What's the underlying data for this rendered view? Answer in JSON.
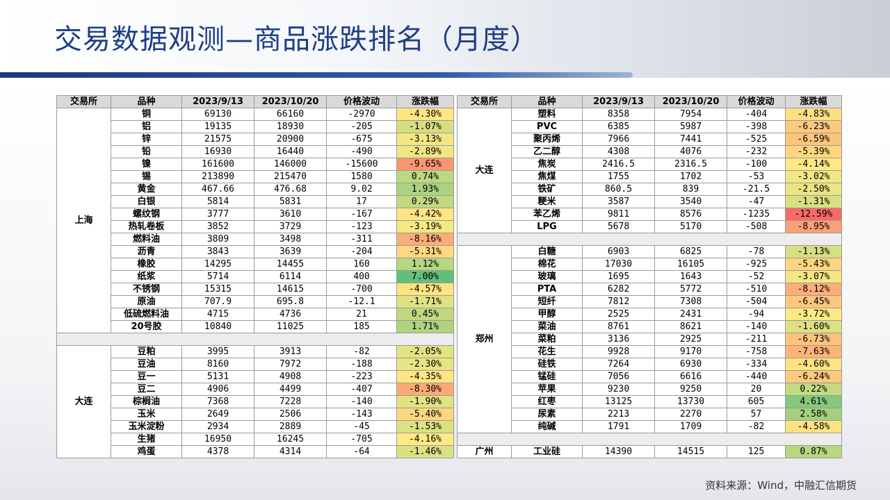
{
  "title": "交易数据观测—商品涨跌排名（月度）",
  "source": "资料来源：Wind，中融汇信期货",
  "headers": [
    "交易所",
    "品种",
    "2023/9/13",
    "2023/10/20",
    "价格波动",
    "涨跌幅"
  ],
  "left_groups": [
    {
      "exchange": "上海",
      "rows": [
        [
          "铜",
          "69130",
          "66160",
          "-2970",
          "-4.30%"
        ],
        [
          "铝",
          "19135",
          "18930",
          "-205",
          "-1.07%"
        ],
        [
          "锌",
          "21575",
          "20900",
          "-675",
          "-3.13%"
        ],
        [
          "铅",
          "16930",
          "16440",
          "-490",
          "-2.89%"
        ],
        [
          "镍",
          "161600",
          "146000",
          "-15600",
          "-9.65%"
        ],
        [
          "锡",
          "213890",
          "215470",
          "1580",
          "0.74%"
        ],
        [
          "黄金",
          "467.66",
          "476.68",
          "9.02",
          "1.93%"
        ],
        [
          "白银",
          "5814",
          "5831",
          "17",
          "0.29%"
        ],
        [
          "螺纹钢",
          "3777",
          "3610",
          "-167",
          "-4.42%"
        ],
        [
          "热轧卷板",
          "3852",
          "3729",
          "-123",
          "-3.19%"
        ],
        [
          "燃料油",
          "3809",
          "3498",
          "-311",
          "-8.16%"
        ],
        [
          "沥青",
          "3843",
          "3639",
          "-204",
          "-5.31%"
        ],
        [
          "橡胶",
          "14295",
          "14455",
          "160",
          "1.12%"
        ],
        [
          "纸浆",
          "5714",
          "6114",
          "400",
          "7.00%"
        ],
        [
          "不锈钢",
          "15315",
          "14615",
          "-700",
          "-4.57%"
        ],
        [
          "原油",
          "707.9",
          "695.8",
          "-12.1",
          "-1.71%"
        ],
        [
          "低硫燃料油",
          "4715",
          "4736",
          "21",
          "0.45%"
        ],
        [
          "20号胶",
          "10840",
          "11025",
          "185",
          "1.71%"
        ]
      ]
    },
    {
      "exchange": "大连",
      "rows": [
        [
          "豆粕",
          "3995",
          "3913",
          "-82",
          "-2.05%"
        ],
        [
          "豆油",
          "8160",
          "7972",
          "-188",
          "-2.30%"
        ],
        [
          "豆一",
          "5131",
          "4908",
          "-223",
          "-4.35%"
        ],
        [
          "豆二",
          "4906",
          "4499",
          "-407",
          "-8.30%"
        ],
        [
          "棕榈油",
          "7368",
          "7228",
          "-140",
          "-1.90%"
        ],
        [
          "玉米",
          "2649",
          "2506",
          "-143",
          "-5.40%"
        ],
        [
          "玉米淀粉",
          "2934",
          "2889",
          "-45",
          "-1.53%"
        ],
        [
          "生猪",
          "16950",
          "16245",
          "-705",
          "-4.16%"
        ],
        [
          "鸡蛋",
          "4378",
          "4314",
          "-64",
          "-1.46%"
        ]
      ]
    }
  ],
  "right_groups": [
    {
      "exchange": "大连",
      "rows": [
        [
          "塑料",
          "8358",
          "7954",
          "-404",
          "-4.83%"
        ],
        [
          "PVC",
          "6385",
          "5987",
          "-398",
          "-6.23%"
        ],
        [
          "聚丙烯",
          "7966",
          "7441",
          "-525",
          "-6.59%"
        ],
        [
          "乙二醇",
          "4308",
          "4076",
          "-232",
          "-5.39%"
        ],
        [
          "焦炭",
          "2416.5",
          "2316.5",
          "-100",
          "-4.14%"
        ],
        [
          "焦煤",
          "1755",
          "1702",
          "-53",
          "-3.02%"
        ],
        [
          "铁矿",
          "860.5",
          "839",
          "-21.5",
          "-2.50%"
        ],
        [
          "粳米",
          "3587",
          "3540",
          "-47",
          "-1.31%"
        ],
        [
          "苯乙烯",
          "9811",
          "8576",
          "-1235",
          "-12.59%"
        ],
        [
          "LPG",
          "5678",
          "5170",
          "-508",
          "-8.95%"
        ]
      ]
    },
    {
      "exchange": "郑州",
      "rows": [
        [
          "白糖",
          "6903",
          "6825",
          "-78",
          "-1.13%"
        ],
        [
          "棉花",
          "17030",
          "16105",
          "-925",
          "-5.43%"
        ],
        [
          "玻璃",
          "1695",
          "1643",
          "-52",
          "-3.07%"
        ],
        [
          "PTA",
          "6282",
          "5772",
          "-510",
          "-8.12%"
        ],
        [
          "短纤",
          "7812",
          "7308",
          "-504",
          "-6.45%"
        ],
        [
          "甲醇",
          "2525",
          "2431",
          "-94",
          "-3.72%"
        ],
        [
          "菜油",
          "8761",
          "8621",
          "-140",
          "-1.60%"
        ],
        [
          "菜粕",
          "3136",
          "2925",
          "-211",
          "-6.73%"
        ],
        [
          "花生",
          "9928",
          "9170",
          "-758",
          "-7.63%"
        ],
        [
          "硅铁",
          "7264",
          "6930",
          "-334",
          "-4.60%"
        ],
        [
          "锰硅",
          "7056",
          "6616",
          "-440",
          "-6.24%"
        ],
        [
          "苹果",
          "9230",
          "9250",
          "20",
          "0.22%"
        ],
        [
          "红枣",
          "13125",
          "13730",
          "605",
          "4.61%"
        ],
        [
          "尿素",
          "2213",
          "2270",
          "57",
          "2.58%"
        ],
        [
          "纯碱",
          "1791",
          "1709",
          "-82",
          "-4.58%"
        ]
      ]
    },
    {
      "exchange": "广州",
      "rows": [
        [
          "工业硅",
          "14390",
          "14515",
          "125",
          "0.87%"
        ]
      ]
    }
  ]
}
